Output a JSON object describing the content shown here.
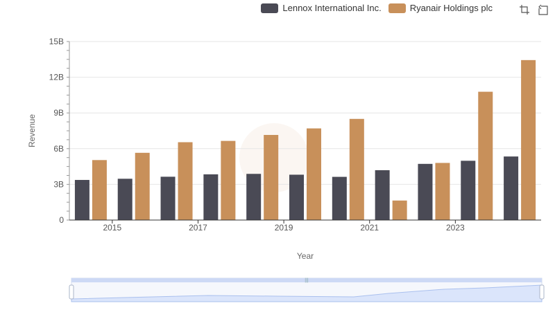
{
  "chart_data": {
    "type": "bar",
    "categories": [
      "2014",
      "2015",
      "2016",
      "2017",
      "2018",
      "2019",
      "2020",
      "2021",
      "2022",
      "2023",
      "2024"
    ],
    "x_tick_labels": [
      "2015",
      "2017",
      "2019",
      "2021",
      "2023"
    ],
    "series": [
      {
        "name": "Lennox International Inc.",
        "color": "#4a4a55",
        "values": [
          3.37,
          3.47,
          3.64,
          3.84,
          3.88,
          3.81,
          3.63,
          4.19,
          4.72,
          4.98,
          5.34
        ]
      },
      {
        "name": "Ryanair Holdings plc",
        "color": "#c8905a",
        "values": [
          5.04,
          5.65,
          6.54,
          6.65,
          7.15,
          7.7,
          8.5,
          1.64,
          4.8,
          10.78,
          13.44
        ]
      }
    ],
    "xlabel": "Year",
    "ylabel": "Revenue",
    "ylim": [
      0,
      15
    ],
    "y_ticks": [
      {
        "value": 0,
        "label": "0"
      },
      {
        "value": 3,
        "label": "3B"
      },
      {
        "value": 6,
        "label": "6B"
      },
      {
        "value": 9,
        "label": "9B"
      },
      {
        "value": 12,
        "label": "12B"
      },
      {
        "value": 15,
        "label": "15B"
      }
    ],
    "grid": true,
    "legend_position": "top-right"
  },
  "toolbox": {
    "zoom_icon": "zoom-icon",
    "restore_icon": "restore-icon"
  }
}
